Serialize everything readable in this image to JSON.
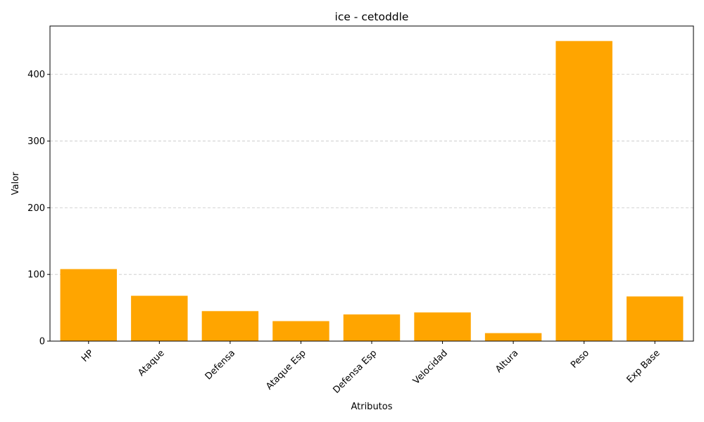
{
  "chart_data": {
    "type": "bar",
    "title": "ice - cetoddle",
    "xlabel": "Atributos",
    "ylabel": "Valor",
    "categories": [
      "HP",
      "Ataque",
      "Defensa",
      "Ataque Esp",
      "Defensa Esp",
      "Velocidad",
      "Altura",
      "Peso",
      "Exp Base"
    ],
    "values": [
      108,
      68,
      45,
      30,
      40,
      43,
      12,
      450,
      67
    ],
    "ylim": [
      0,
      472.5
    ],
    "yticks": [
      0,
      100,
      200,
      300,
      400
    ],
    "grid": "y-dashed",
    "bar_color": "#FFA500",
    "xtick_rotation": 45
  }
}
